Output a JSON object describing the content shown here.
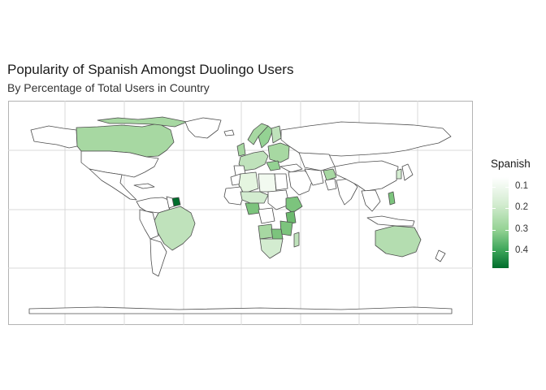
{
  "title": "Popularity of Spanish Amongst Duolingo Users",
  "subtitle": "By Percentage of Total Users in Country",
  "legend": {
    "title": "Spanish",
    "ticks": [
      "0.1",
      "0.2",
      "0.3",
      "0.4"
    ],
    "colors": {
      "low": "#ffffff",
      "mid": "#94d293",
      "high": "#006d2c"
    }
  },
  "chart_data": {
    "type": "choropleth",
    "variable": "Spanish",
    "scale_range": [
      0.05,
      0.45
    ],
    "grid": "on",
    "legend_position": "right",
    "regions": [
      {
        "name": "Canada",
        "value": 0.22
      },
      {
        "name": "Brazil",
        "value": 0.22
      },
      {
        "name": "Australia",
        "value": 0.2
      },
      {
        "name": "Suriname",
        "value": 0.42
      },
      {
        "name": "Algeria",
        "value": 0.1
      },
      {
        "name": "Libya",
        "value": 0.07
      },
      {
        "name": "Nigeria",
        "value": 0.3
      },
      {
        "name": "Ethiopia",
        "value": 0.3
      },
      {
        "name": "Kenya",
        "value": 0.32
      },
      {
        "name": "Tanzania",
        "value": 0.3
      },
      {
        "name": "Angola",
        "value": 0.25
      },
      {
        "name": "Zambia",
        "value": 0.3
      },
      {
        "name": "Madagascar",
        "value": 0.2
      },
      {
        "name": "Sweden",
        "value": 0.25
      },
      {
        "name": "Norway",
        "value": 0.22
      },
      {
        "name": "Afghanistan",
        "value": 0.22
      },
      {
        "name": "Philippines",
        "value": 0.28
      }
    ]
  }
}
